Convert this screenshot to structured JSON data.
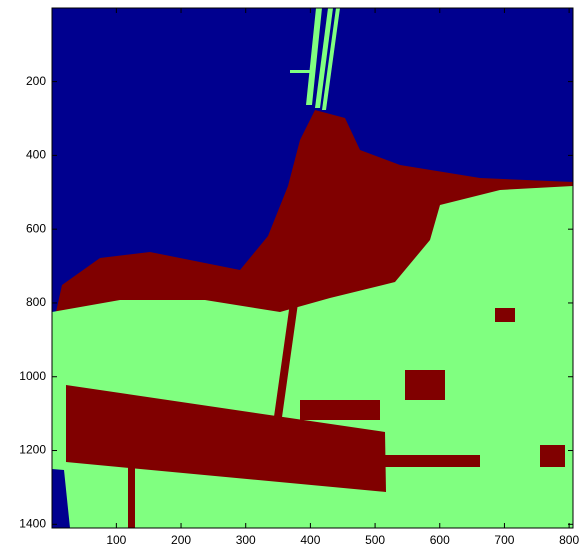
{
  "chart_data": {
    "type": "image",
    "xlim": [
      0.5,
      806
    ],
    "ylim": [
      0.5,
      1410
    ],
    "y_reversed": true,
    "xticks": [
      100,
      200,
      300,
      400,
      500,
      600,
      700,
      800
    ],
    "yticks": [
      200,
      400,
      600,
      800,
      1000,
      1200,
      1400
    ]
  }
}
